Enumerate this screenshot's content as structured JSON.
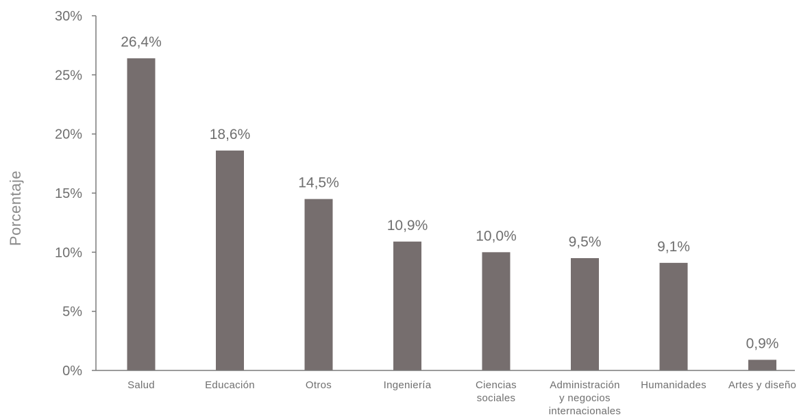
{
  "chart_data": {
    "type": "bar",
    "categories": [
      [
        "Salud"
      ],
      [
        "Educación"
      ],
      [
        "Otros"
      ],
      [
        "Ingeniería"
      ],
      [
        "Ciencias",
        "sociales"
      ],
      [
        "Administración",
        "y negocios",
        "internacionales"
      ],
      [
        "Humanidades"
      ],
      [
        "Artes y diseño"
      ]
    ],
    "values": [
      26.4,
      18.6,
      14.5,
      10.9,
      10.0,
      9.5,
      9.1,
      0.9
    ],
    "data_labels": [
      "26,4%",
      "18,6%",
      "14,5%",
      "10,9%",
      "10,0%",
      "9,5%",
      "9,1%",
      "0,9%"
    ],
    "ylabel": "Porcentaje",
    "xlabel": "",
    "ylim": [
      0,
      30
    ],
    "y_ticks": [
      0,
      5,
      10,
      15,
      20,
      25,
      30
    ],
    "y_tick_labels": [
      "0%",
      "5%",
      "10%",
      "15%",
      "20%",
      "25%",
      "30%"
    ],
    "bar_color": "#766e6e",
    "grid": false,
    "legend": "none"
  }
}
